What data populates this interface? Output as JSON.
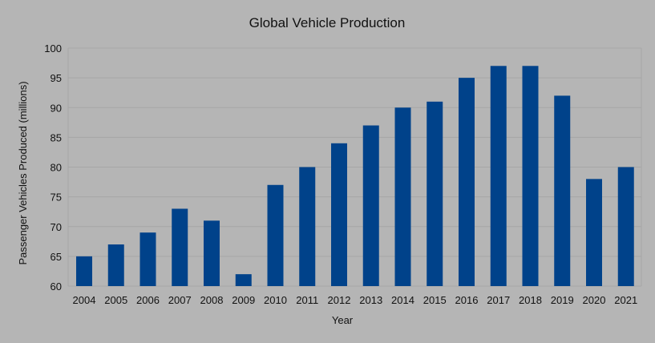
{
  "chart_data": {
    "type": "bar",
    "title": "Global Vehicle Production",
    "xlabel": "Year",
    "ylabel": "Passenger Vehicles Produced (millions)",
    "categories": [
      "2004",
      "2005",
      "2006",
      "2007",
      "2008",
      "2009",
      "2010",
      "2011",
      "2012",
      "2013",
      "2014",
      "2015",
      "2016",
      "2017",
      "2018",
      "2019",
      "2020",
      "2021"
    ],
    "values": [
      65,
      67,
      69,
      73,
      71,
      62,
      77,
      80,
      84,
      87,
      90,
      91,
      95,
      97,
      97,
      92,
      78,
      80
    ],
    "ylim": [
      60,
      100
    ],
    "yticks": [
      "60",
      "65",
      "70",
      "75",
      "80",
      "85",
      "90",
      "95",
      "100"
    ],
    "grid": true,
    "legend": "none",
    "colors": {
      "bar": "#00428a",
      "background": "#b5b5b5",
      "grid": "#a6a6a6",
      "text": "#111111"
    }
  }
}
